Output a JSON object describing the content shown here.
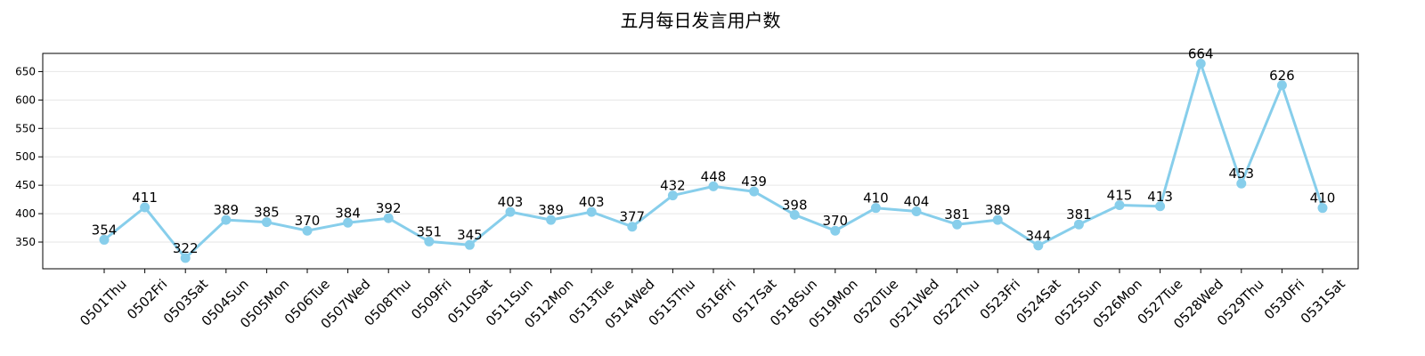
{
  "chart_data": {
    "type": "line",
    "title": "五月每日发言用户数",
    "xlabel": "",
    "ylabel": "",
    "categories": [
      "0501Thu",
      "0502Fri",
      "0503Sat",
      "0504Sun",
      "0505Mon",
      "0506Tue",
      "0507Wed",
      "0508Thu",
      "0509Fri",
      "0510Sat",
      "0511Sun",
      "0512Mon",
      "0513Tue",
      "0514Wed",
      "0515Thu",
      "0516Fri",
      "0517Sat",
      "0518Sun",
      "0519Mon",
      "0520Tue",
      "0521Wed",
      "0522Thu",
      "0523Fri",
      "0524Sat",
      "0525Sun",
      "0526Mon",
      "0527Tue",
      "0528Wed",
      "0529Thu",
      "0530Fri",
      "0531Sat"
    ],
    "series": [
      {
        "values": [
          354,
          411,
          322,
          389,
          385,
          370,
          384,
          392,
          351,
          345,
          403,
          389,
          403,
          377,
          432,
          448,
          439,
          398,
          370,
          410,
          404,
          381,
          389,
          344,
          381,
          415,
          413,
          664,
          453,
          626,
          410
        ],
        "color": "#87CEEB"
      }
    ],
    "ylim": [
      303,
      682
    ],
    "yticks": [
      350,
      400,
      450,
      500,
      550,
      600,
      650
    ],
    "grid": "horizontal",
    "data_labels": true
  }
}
